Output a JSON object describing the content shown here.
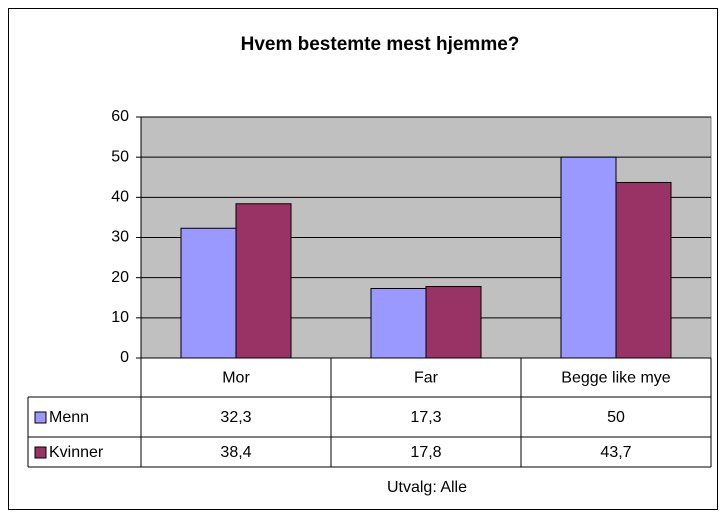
{
  "chart_data": {
    "type": "bar",
    "title": "Hvem bestemte mest hjemme?",
    "categories": [
      "Mor",
      "Far",
      "Begge like mye"
    ],
    "series": [
      {
        "name": "Menn",
        "color": "#9999ff",
        "values": [
          32.3,
          17.3,
          50
        ],
        "value_labels": [
          "32,3",
          "17,3",
          "50"
        ]
      },
      {
        "name": "Kvinner",
        "color": "#993366",
        "values": [
          38.4,
          17.8,
          43.7
        ],
        "value_labels": [
          "38,4",
          "17,8",
          "43,7"
        ]
      }
    ],
    "ylim": [
      0,
      60
    ],
    "yticks": [
      0,
      10,
      20,
      30,
      40,
      50,
      60
    ],
    "grid": true,
    "annotation": "Utvalg: Alle"
  }
}
